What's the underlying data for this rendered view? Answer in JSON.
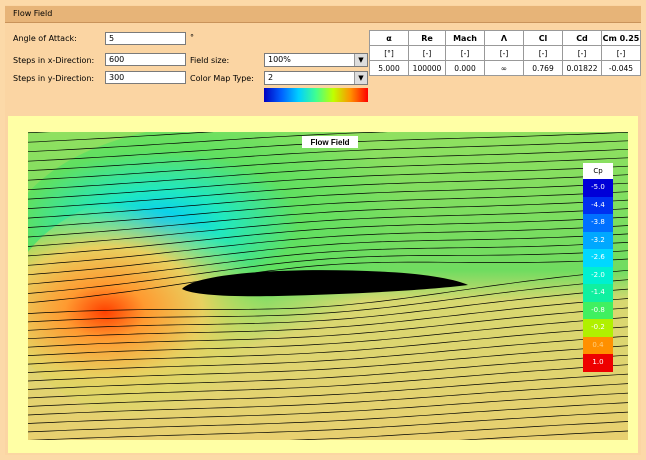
{
  "window": {
    "title": "Flow Field"
  },
  "inputs": {
    "angle_label": "Angle of Attack:",
    "angle_value": "5",
    "angle_unit": "°",
    "stepsx_label": "Steps in x-Direction:",
    "stepsx_value": "600",
    "stepsy_label": "Steps in y-Direction:",
    "stepsy_value": "300",
    "fieldsize_label": "Field size:",
    "fieldsize_value": "100%",
    "colormap_label": "Color Map Type:",
    "colormap_value": "2"
  },
  "results": {
    "headers": [
      "α",
      "Re",
      "Mach",
      "Λ",
      "Cl",
      "Cd",
      "Cm 0.25"
    ],
    "units": [
      "[°]",
      "[-]",
      "[-]",
      "[-]",
      "[-]",
      "[-]",
      "[-]"
    ],
    "values": [
      "5.000",
      "100000",
      "0.000",
      "∞",
      "0.769",
      "0.01822",
      "-0.045"
    ]
  },
  "plot": {
    "title": "Flow Field"
  },
  "legend": {
    "header": "Cp",
    "entries": [
      {
        "label": "-5.0",
        "color": "#0000d8"
      },
      {
        "label": "-4.4",
        "color": "#0030f0"
      },
      {
        "label": "-3.8",
        "color": "#0070ff"
      },
      {
        "label": "-3.2",
        "color": "#00a8ff"
      },
      {
        "label": "-2.6",
        "color": "#00d8ff"
      },
      {
        "label": "-2.0",
        "color": "#00f0d0"
      },
      {
        "label": "-1.4",
        "color": "#10f0a0"
      },
      {
        "label": "-0.8",
        "color": "#40f060"
      },
      {
        "label": "-0.2",
        "color": "#b0f000"
      },
      {
        "label": "0.4",
        "color": "#ff9000"
      },
      {
        "label": "1.0",
        "color": "#ee0000"
      }
    ]
  }
}
